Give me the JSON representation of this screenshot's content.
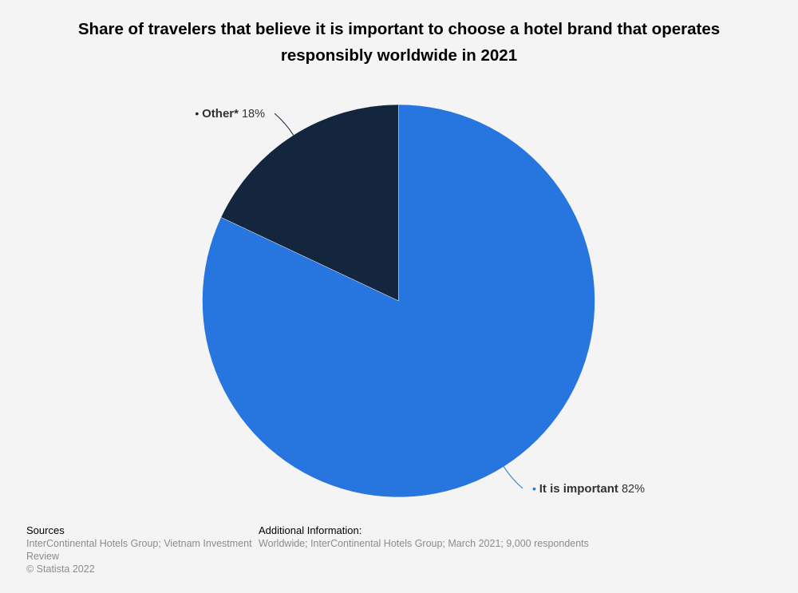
{
  "chart_data": {
    "type": "pie",
    "title": "Share of travelers that believe it is important to choose a hotel brand that operates responsibly worldwide in 2021",
    "slices": [
      {
        "label": "It is important",
        "value": 82,
        "value_label": "82%",
        "color": "#2775de"
      },
      {
        "label": "Other*",
        "value": 18,
        "value_label": "18%",
        "color": "#13263d"
      }
    ],
    "start_angle": "12 o'clock",
    "direction": "clockwise",
    "legend": "none",
    "labels": "outside with leader lines"
  },
  "footer": {
    "sources_heading": "Sources",
    "sources_text": "InterContinental Hotels Group; Vietnam Investment Review",
    "copyright": "© Statista 2022",
    "info_heading": "Additional Information:",
    "info_text": "Worldwide; InterContinental Hotels Group; March 2021; 9,000 respondents"
  }
}
